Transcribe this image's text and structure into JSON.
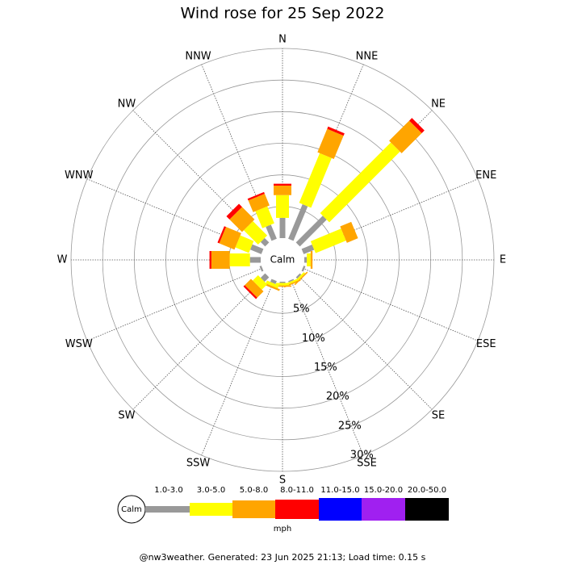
{
  "chart_data": {
    "type": "windrose",
    "title": "Wind rose for 25 Sep 2022",
    "categories": [
      "N",
      "NNE",
      "NE",
      "ENE",
      "E",
      "ESE",
      "SE",
      "SSE",
      "S",
      "SSW",
      "SW",
      "WSW",
      "W",
      "WNW",
      "NW",
      "NNW"
    ],
    "series": [
      {
        "name": "1.0-3.0",
        "color": "#999999",
        "values": [
          3.2,
          5.9,
          6.0,
          1.8,
          0.4,
          0.3,
          0.3,
          0.2,
          0.2,
          0.5,
          1.0,
          0.3,
          1.7,
          1.9,
          1.0,
          2.4
        ]
      },
      {
        "name": "3.0-5.0",
        "color": "#ffff00",
        "values": [
          3.6,
          8.5,
          15.8,
          5.2,
          0.6,
          0,
          0.3,
          0.3,
          0.4,
          0.5,
          1.2,
          0,
          3.2,
          2.3,
          3.2,
          2.9
        ]
      },
      {
        "name": "5.0-8.0",
        "color": "#ffa500",
        "values": [
          1.5,
          4.0,
          4.5,
          1.9,
          0.3,
          0,
          0.2,
          0.2,
          0.2,
          0.3,
          1.4,
          0,
          2.9,
          2.6,
          2.8,
          2.0
        ]
      },
      {
        "name": "8.0-11.0",
        "color": "#ff0000",
        "values": [
          0.3,
          0.4,
          0.6,
          0,
          0,
          0,
          0,
          0,
          0,
          0,
          0.3,
          0,
          0.3,
          0.3,
          0.7,
          0.3
        ]
      },
      {
        "name": "11.0-15.0",
        "color": "#0000ff",
        "values": [
          0,
          0,
          0,
          0,
          0,
          0,
          0,
          0,
          0,
          0,
          0,
          0,
          0,
          0,
          0,
          0
        ]
      },
      {
        "name": "15.0-20.0",
        "color": "#a020f0",
        "values": [
          0,
          0,
          0,
          0,
          0,
          0,
          0,
          0,
          0,
          0,
          0,
          0,
          0,
          0,
          0,
          0
        ]
      },
      {
        "name": "20.0-50.0",
        "color": "#000000",
        "values": [
          0,
          0,
          0,
          0,
          0,
          0,
          0,
          0,
          0,
          0,
          0,
          0,
          0,
          0,
          0,
          0
        ]
      }
    ],
    "ylim": [
      0,
      30
    ],
    "yticks": [
      {
        "value": 5,
        "label": "5%"
      },
      {
        "value": 10,
        "label": "10%"
      },
      {
        "value": 15,
        "label": "15%"
      },
      {
        "value": 20,
        "label": "20%"
      },
      {
        "value": 25,
        "label": "25%"
      },
      {
        "value": 30,
        "label": "30%"
      }
    ],
    "calm_label": "Calm",
    "unit": "mph"
  },
  "footer": "@nw3weather.  Generated: 23 Jun 2025 21:13; Load time: 0.15 s"
}
